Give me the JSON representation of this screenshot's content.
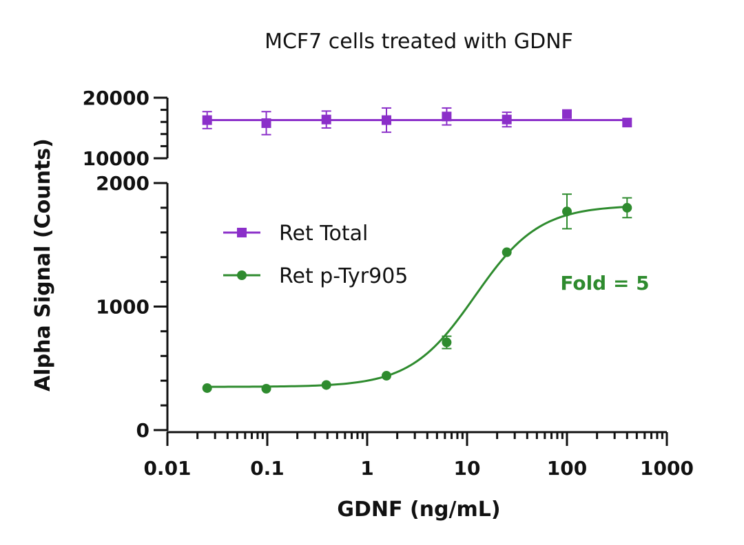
{
  "chart_data": {
    "type": "scatter",
    "title": "MCF7 cells treated with GDNF",
    "xlabel": "GDNF (ng/mL)",
    "ylabel": "Alpha Signal (Counts)",
    "xscale": "log",
    "xlim": [
      0.01,
      1000
    ],
    "x_ticks": [
      0.01,
      0.1,
      1,
      10,
      100,
      1000
    ],
    "x_tick_labels": [
      "0.01",
      "0.1",
      "1",
      "10",
      "100",
      "1000"
    ],
    "y_axis_break": true,
    "y_lower": {
      "ylim": [
        0,
        2000
      ],
      "ticks": [
        0,
        1000,
        2000
      ],
      "tick_labels": [
        "0",
        "1000",
        "2000"
      ]
    },
    "y_upper": {
      "ylim": [
        10000,
        20000
      ],
      "ticks": [
        10000,
        20000
      ],
      "tick_labels": [
        "10000",
        "20000"
      ]
    },
    "legend_position": "upper-left",
    "series": [
      {
        "name": "Ret Total",
        "color": "#8B2FC9",
        "marker": "square",
        "x": [
          0.025,
          0.0977,
          0.39,
          1.56,
          6.25,
          25,
          100,
          400
        ],
        "y": [
          16300,
          15800,
          16400,
          16300,
          16900,
          16400,
          17300,
          15900
        ],
        "err": [
          1400,
          1900,
          1400,
          2000,
          1400,
          1200,
          0,
          0
        ],
        "fit": "flat",
        "fit_value": 16300
      },
      {
        "name": "Ret p-Tyr905",
        "color": "#2E8B2E",
        "marker": "circle",
        "x": [
          0.025,
          0.0977,
          0.39,
          1.56,
          6.25,
          25,
          100,
          400
        ],
        "y": [
          340,
          335,
          365,
          440,
          710,
          1440,
          1770,
          1800
        ],
        "err": [
          0,
          0,
          0,
          0,
          50,
          0,
          140,
          80
        ],
        "fit": "four-parameter logistic",
        "fit_params": {
          "bottom": 350,
          "top": 1820,
          "ec50": 12,
          "hill": 1.35
        }
      }
    ],
    "annotations": [
      {
        "text": "Fold = 5",
        "color": "#2E8B2E"
      }
    ]
  }
}
